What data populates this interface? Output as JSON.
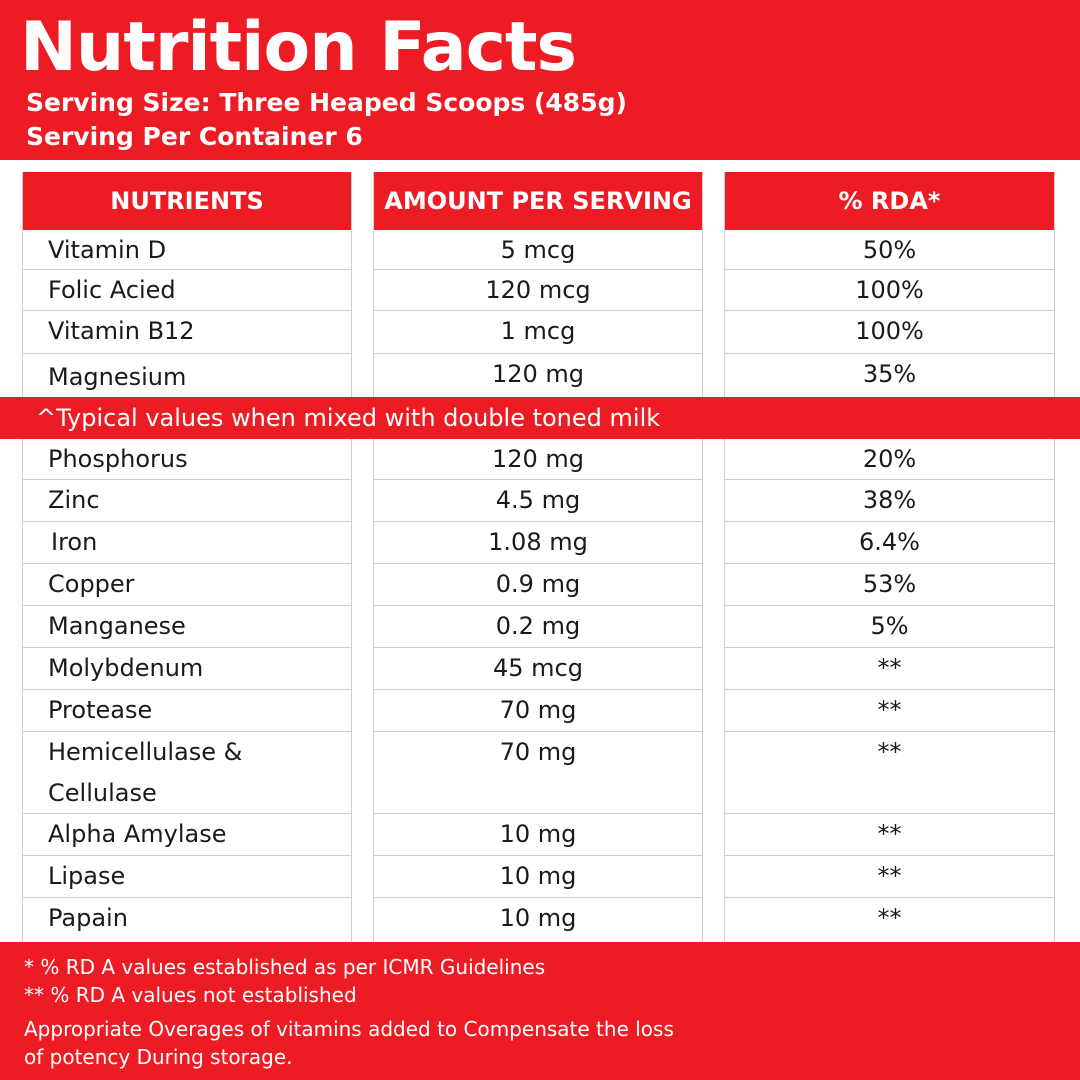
{
  "header": {
    "title": "Nutrition Facts",
    "serving_size": "Serving Size: Three Heaped Scoops (485g)",
    "servings_per_container": "Serving Per Container 6"
  },
  "table": {
    "headers": [
      "NUTRIENTS",
      "AMOUNT PER SERVING",
      "% RDA*"
    ],
    "rows_top": [
      {
        "nutrient": "Vitamin D",
        "amount": "5 mcg",
        "rda": "50%"
      },
      {
        "nutrient": "Folic Acied",
        "amount": "120 mcg",
        "rda": "100%"
      },
      {
        "nutrient": "Vitamin B12",
        "amount": "1 mcg",
        "rda": "100%"
      },
      {
        "nutrient": "Magnesium",
        "amount": "120 mg",
        "rda": "35%"
      }
    ],
    "band_note": "^Typical values when mixed with double toned milk",
    "rows_bottom": [
      {
        "nutrient": "Phosphorus",
        "amount": "120 mg",
        "rda": "20%"
      },
      {
        "nutrient": "Zinc",
        "amount": "4.5 mg",
        "rda": "38%"
      },
      {
        "nutrient": "Iron",
        "amount": "1.08 mg",
        "rda": "6.4%"
      },
      {
        "nutrient": "Copper",
        "amount": "0.9 mg",
        "rda": "53%"
      },
      {
        "nutrient": "Manganese",
        "amount": "0.2 mg",
        "rda": "5%"
      },
      {
        "nutrient": "Molybdenum",
        "amount": "45 mcg",
        "rda": "**"
      },
      {
        "nutrient": "Protease",
        "amount": "70 mg",
        "rda": "**"
      },
      {
        "nutrient": "Hemicellulase & Cellulase",
        "amount": "70 mg",
        "rda": "**"
      },
      {
        "nutrient": "Alpha Amylase",
        "amount": "10 mg",
        "rda": "**"
      },
      {
        "nutrient": "Lipase",
        "amount": "10 mg",
        "rda": "**"
      },
      {
        "nutrient": "Papain",
        "amount": "10 mg",
        "rda": "**"
      }
    ]
  },
  "footer": {
    "note1": "* % RD A values established as per ICMR Guidelines",
    "note2": "** % RD A values not established",
    "note3": "Appropriate Overages of vitamins added to Compensate the loss",
    "note4": "of potency During storage."
  },
  "colors": {
    "accent": "#ed1c24",
    "text": "#1a1a1a"
  }
}
